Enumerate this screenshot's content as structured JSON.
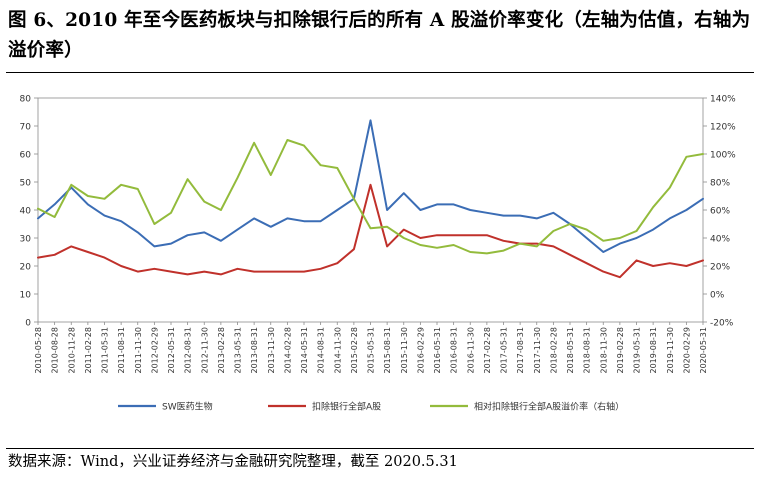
{
  "figure": {
    "title": "图 6、2010 年至今医药板块与扣除银行后的所有 A 股溢价率变化（左轴为估值，右轴为溢价率）",
    "source": "数据来源：Wind，兴业证券经济与金融研究院整理，截至 2020.5.31"
  },
  "chart_data": {
    "type": "line",
    "title": "",
    "xlabel": "",
    "ylabel": "",
    "left_axis": {
      "min": 0,
      "max": 80,
      "step": 10,
      "ticks": [
        "0",
        "10",
        "20",
        "30",
        "40",
        "50",
        "60",
        "70",
        "80"
      ]
    },
    "right_axis": {
      "min": -0.2,
      "max": 1.4,
      "step": 0.2,
      "ticks": [
        "-20%",
        "0%",
        "20%",
        "40%",
        "60%",
        "80%",
        "100%",
        "120%",
        "140%"
      ]
    },
    "grid": false,
    "legend_position": "bottom",
    "x_tick_labels": [
      "2010-05-28",
      "2010-08-28",
      "2010-11-28",
      "2011-02-28",
      "2011-05-31",
      "2011-08-31",
      "2011-11-30",
      "2012-02-29",
      "2012-05-31",
      "2012-08-31",
      "2012-11-30",
      "2013-02-28",
      "2013-05-31",
      "2013-08-31",
      "2013-11-30",
      "2014-02-28",
      "2014-05-31",
      "2014-08-31",
      "2014-11-30",
      "2015-02-28",
      "2015-05-31",
      "2015-08-31",
      "2015-11-30",
      "2016-02-29",
      "2016-05-31",
      "2016-08-31",
      "2016-11-30",
      "2017-02-28",
      "2017-05-31",
      "2017-08-31",
      "2017-11-30",
      "2018-02-28",
      "2018-05-31",
      "2018-08-31",
      "2018-11-30",
      "2019-02-28",
      "2019-05-31",
      "2019-08-31",
      "2019-11-30",
      "2020-02-29",
      "2020-05-31"
    ],
    "series": [
      {
        "name": "SW医药生物",
        "axis": "left",
        "color": "#3b6db5",
        "values": [
          37,
          42,
          48,
          42,
          38,
          36,
          32,
          27,
          28,
          31,
          32,
          29,
          33,
          37,
          34,
          37,
          36,
          36,
          40,
          44,
          72,
          40,
          46,
          40,
          42,
          42,
          40,
          39,
          38,
          38,
          37,
          39,
          35,
          30,
          25,
          28,
          30,
          33,
          37,
          40,
          44
        ]
      },
      {
        "name": "扣除银行全部A股",
        "axis": "left",
        "color": "#c0312b",
        "values": [
          23,
          24,
          27,
          25,
          23,
          20,
          18,
          19,
          18,
          17,
          18,
          17,
          19,
          18,
          18,
          18,
          18,
          19,
          21,
          26,
          49,
          27,
          33,
          30,
          31,
          31,
          31,
          31,
          29,
          28,
          28,
          27,
          24,
          21,
          18,
          16,
          22,
          20,
          21,
          20,
          22
        ]
      },
      {
        "name": "相对扣除银行全部A股溢价率（右轴）",
        "axis": "right",
        "color": "#93bb3c",
        "values": [
          0.61,
          0.55,
          0.78,
          0.7,
          0.68,
          0.78,
          0.75,
          0.5,
          0.58,
          0.82,
          0.66,
          0.6,
          0.83,
          1.08,
          0.85,
          1.1,
          1.06,
          0.92,
          0.9,
          0.68,
          0.47,
          0.48,
          0.4,
          0.35,
          0.33,
          0.35,
          0.3,
          0.29,
          0.31,
          0.36,
          0.34,
          0.45,
          0.5,
          0.46,
          0.38,
          0.4,
          0.45,
          0.62,
          0.76,
          0.98,
          1.0
        ]
      }
    ]
  }
}
